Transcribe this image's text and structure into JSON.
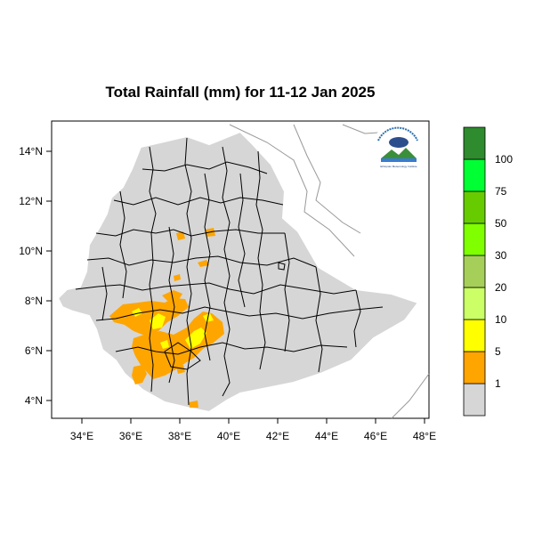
{
  "title": "Total Rainfall (mm) for 11-12 Jan 2025",
  "x_ticks": [
    "34°E",
    "36°E",
    "38°E",
    "40°E",
    "42°E",
    "44°E",
    "46°E",
    "48°E"
  ],
  "y_ticks": [
    "14°N",
    "12°N",
    "10°N",
    "8°N",
    "6°N",
    "4°N"
  ],
  "legend": {
    "labels": [
      "1",
      "5",
      "10",
      "20",
      "30",
      "50",
      "75",
      "100"
    ],
    "colors": [
      "#d6d6d6",
      "#ffa500",
      "#ffff00",
      "#ccff66",
      "#a6cf5a",
      "#80ff00",
      "#66cc00",
      "#00ff33",
      "#2e8b2e"
    ]
  },
  "logo_text": "Ethiopian Meteorology Institute"
}
